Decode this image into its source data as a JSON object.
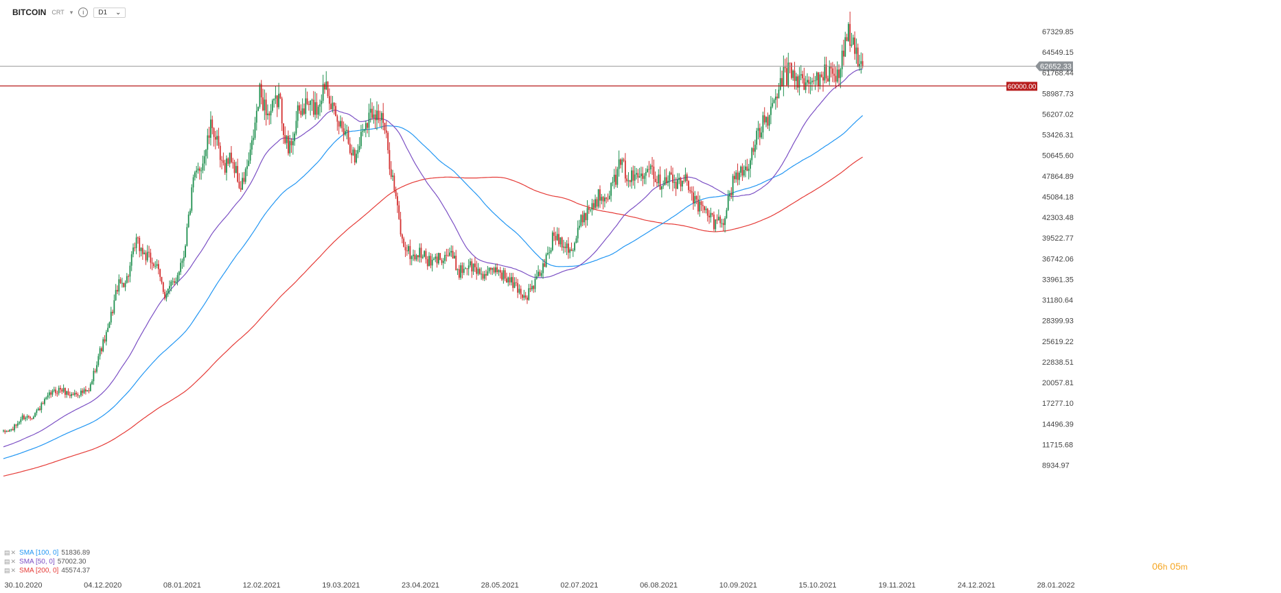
{
  "header": {
    "title": "BITCOIN",
    "type": "CRT",
    "timeframe": "D1",
    "timeframe_caret": "⌄"
  },
  "legend": [
    {
      "label": "SMA [100, 0]",
      "value": "51836.89",
      "color": "#2196f3"
    },
    {
      "label": "SMA [50, 0]",
      "value": "57002.30",
      "color": "#7b4fc4"
    },
    {
      "label": "SMA [200, 0]",
      "value": "45574.37",
      "color": "#e53935"
    }
  ],
  "timer": {
    "hours": "06",
    "h": "h",
    "minutes": "05",
    "m": "m"
  },
  "chart_data": {
    "type": "candlestick",
    "colors": {
      "up": "#1e8f4e",
      "down": "#d32f2f",
      "sma100": "#2196f3",
      "sma50": "#7b4fc4",
      "sma200": "#e53935",
      "level": "#b71c1c",
      "price_line": "#888888"
    },
    "y_ticks": [
      "67329.85",
      "64549.15",
      "61768.44",
      "58987.73",
      "56207.02",
      "53426.31",
      "50645.60",
      "47864.89",
      "45084.18",
      "42303.48",
      "39522.77",
      "36742.06",
      "33961.35",
      "31180.64",
      "28399.93",
      "25619.22",
      "22838.51",
      "20057.81",
      "17277.10",
      "14496.39",
      "11715.68",
      "8934.97"
    ],
    "ylim": [
      8934.97,
      67329.85
    ],
    "x_ticks": [
      "30.10.2020",
      "04.12.2020",
      "08.01.2021",
      "12.02.2021",
      "19.03.2021",
      "23.04.2021",
      "28.05.2021",
      "02.07.2021",
      "06.08.2021",
      "10.09.2021",
      "15.10.2021",
      "19.11.2021",
      "24.12.2021",
      "28.01.2022"
    ],
    "current_price": {
      "label": "62652.33",
      "value": 62652.33
    },
    "horizontal_level": {
      "label": "60000.00",
      "value": 60000.0
    },
    "anchors": [
      [
        0,
        13300
      ],
      [
        6,
        13800
      ],
      [
        12,
        15400
      ],
      [
        18,
        15500
      ],
      [
        24,
        16900
      ],
      [
        30,
        18600
      ],
      [
        36,
        19200
      ],
      [
        42,
        18400
      ],
      [
        48,
        18700
      ],
      [
        54,
        18800
      ],
      [
        60,
        23700
      ],
      [
        66,
        27000
      ],
      [
        72,
        33000
      ],
      [
        78,
        34000
      ],
      [
        84,
        39000
      ],
      [
        90,
        37000
      ],
      [
        96,
        36000
      ],
      [
        102,
        32000
      ],
      [
        108,
        33500
      ],
      [
        114,
        37500
      ],
      [
        120,
        47000
      ],
      [
        126,
        50000
      ],
      [
        132,
        55000
      ],
      [
        138,
        49000
      ],
      [
        144,
        50500
      ],
      [
        150,
        46000
      ],
      [
        156,
        50500
      ],
      [
        162,
        59000
      ],
      [
        168,
        56000
      ],
      [
        174,
        58500
      ],
      [
        180,
        51000
      ],
      [
        186,
        56000
      ],
      [
        192,
        57500
      ],
      [
        198,
        57000
      ],
      [
        204,
        61000
      ],
      [
        210,
        55000
      ],
      [
        216,
        54500
      ],
      [
        222,
        50000
      ],
      [
        228,
        55000
      ],
      [
        234,
        57000
      ],
      [
        240,
        55000
      ],
      [
        246,
        47500
      ],
      [
        252,
        39000
      ],
      [
        258,
        37000
      ],
      [
        264,
        37500
      ],
      [
        270,
        36000
      ],
      [
        276,
        37000
      ],
      [
        282,
        37500
      ],
      [
        288,
        35000
      ],
      [
        294,
        36000
      ],
      [
        300,
        35000
      ],
      [
        306,
        34500
      ],
      [
        312,
        35500
      ],
      [
        318,
        34000
      ],
      [
        324,
        33000
      ],
      [
        330,
        31500
      ],
      [
        336,
        33500
      ],
      [
        342,
        36000
      ],
      [
        348,
        40000
      ],
      [
        354,
        39000
      ],
      [
        360,
        38000
      ],
      [
        366,
        42500
      ],
      [
        372,
        44000
      ],
      [
        378,
        45500
      ],
      [
        384,
        46000
      ],
      [
        390,
        49500
      ],
      [
        396,
        47500
      ],
      [
        402,
        48000
      ],
      [
        408,
        50000
      ],
      [
        414,
        47000
      ],
      [
        420,
        48000
      ],
      [
        426,
        46500
      ],
      [
        432,
        47500
      ],
      [
        438,
        44000
      ],
      [
        444,
        43000
      ],
      [
        450,
        41500
      ],
      [
        456,
        42500
      ],
      [
        462,
        48000
      ],
      [
        468,
        48500
      ],
      [
        474,
        51500
      ],
      [
        480,
        55000
      ],
      [
        486,
        56500
      ],
      [
        492,
        61000
      ],
      [
        498,
        62000
      ],
      [
        504,
        60500
      ],
      [
        510,
        60000
      ],
      [
        516,
        61500
      ],
      [
        522,
        61500
      ],
      [
        528,
        62000
      ],
      [
        534,
        67500
      ],
      [
        540,
        63000
      ],
      [
        543,
        62652
      ]
    ]
  }
}
